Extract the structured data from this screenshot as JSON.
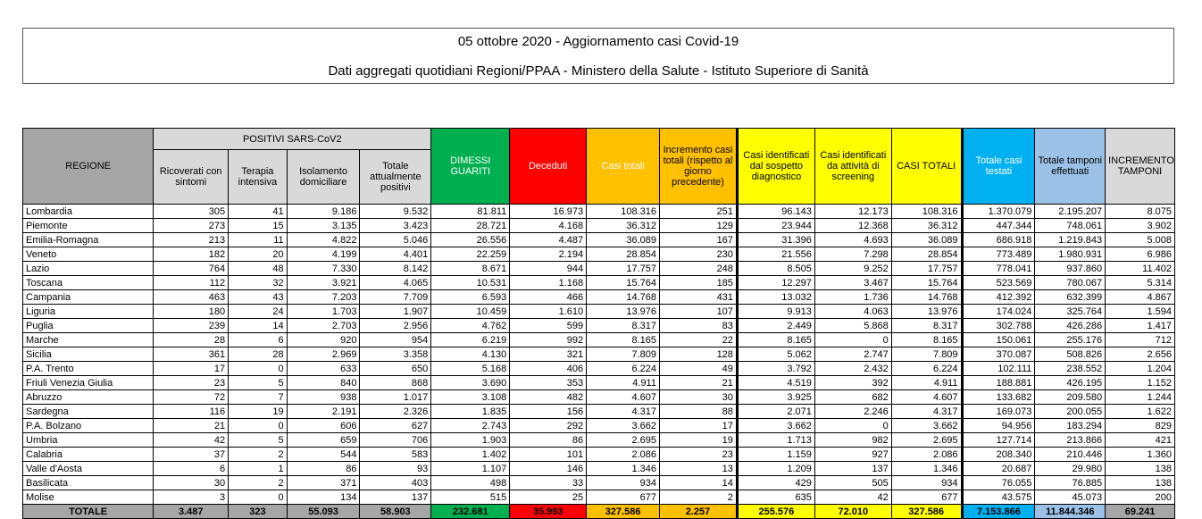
{
  "title": "05 ottobre 2020 - Aggiornamento casi Covid-19",
  "subtitle": "Dati aggregati quotidiani Regioni/PPAA - Ministero della Salute - Istituto Superiore di Sanità",
  "headers": {
    "regione": "REGIONE",
    "positivi_group": "POSITIVI SARS-CoV2",
    "ricoverati": "Ricoverati con sintomi",
    "terapia": "Terapia intensiva",
    "isolamento": "Isolamento domiciliare",
    "totale_positivi": "Totale attualmente positivi",
    "dimessi": "DIMESSI GUARITI",
    "deceduti": "Deceduti",
    "casi_totali": "Casi totali",
    "incremento_casi": "Incremento casi totali (rispetto al giorno precedente)",
    "sospetto": "Casi identificati dal sospetto diagnostico",
    "screening": "Casi identificati da attività di screening",
    "casi_totali_caps": "CASI TOTALI",
    "testati": "Totale casi testati",
    "tamponi": "Totale tamponi effettuati",
    "incremento_tamponi": "INCREMENTO TAMPONI"
  },
  "rows": [
    [
      "Lombardia",
      "305",
      "41",
      "9.186",
      "9.532",
      "81.811",
      "16.973",
      "108.316",
      "251",
      "96.143",
      "12.173",
      "108.316",
      "1.370.079",
      "2.195.207",
      "8.075"
    ],
    [
      "Piemonte",
      "273",
      "15",
      "3.135",
      "3.423",
      "28.721",
      "4.168",
      "36.312",
      "129",
      "23.944",
      "12.368",
      "36.312",
      "447.344",
      "748.061",
      "3.902"
    ],
    [
      "Emilia-Romagna",
      "213",
      "11",
      "4.822",
      "5.046",
      "26.556",
      "4.487",
      "36.089",
      "167",
      "31.396",
      "4.693",
      "36.089",
      "686.918",
      "1.219.843",
      "5.008"
    ],
    [
      "Veneto",
      "182",
      "20",
      "4.199",
      "4.401",
      "22.259",
      "2.194",
      "28.854",
      "230",
      "21.556",
      "7.298",
      "28.854",
      "773.489",
      "1.980.931",
      "6.986"
    ],
    [
      "Lazio",
      "764",
      "48",
      "7.330",
      "8.142",
      "8.671",
      "944",
      "17.757",
      "248",
      "8.505",
      "9.252",
      "17.757",
      "778.041",
      "937.860",
      "11.402"
    ],
    [
      "Toscana",
      "112",
      "32",
      "3.921",
      "4.065",
      "10.531",
      "1.168",
      "15.764",
      "185",
      "12.297",
      "3.467",
      "15.764",
      "523.569",
      "780.067",
      "5.314"
    ],
    [
      "Campania",
      "463",
      "43",
      "7.203",
      "7.709",
      "6.593",
      "466",
      "14.768",
      "431",
      "13.032",
      "1.736",
      "14.768",
      "412.392",
      "632.399",
      "4.867"
    ],
    [
      "Liguria",
      "180",
      "24",
      "1.703",
      "1.907",
      "10.459",
      "1.610",
      "13.976",
      "107",
      "9.913",
      "4.063",
      "13.976",
      "174.024",
      "325.764",
      "1.594"
    ],
    [
      "Puglia",
      "239",
      "14",
      "2.703",
      "2.956",
      "4.762",
      "599",
      "8.317",
      "83",
      "2.449",
      "5.868",
      "8.317",
      "302.788",
      "426.286",
      "1.417"
    ],
    [
      "Marche",
      "28",
      "6",
      "920",
      "954",
      "6.219",
      "992",
      "8.165",
      "22",
      "8.165",
      "0",
      "8.165",
      "150.061",
      "255.176",
      "712"
    ],
    [
      "Sicilia",
      "361",
      "28",
      "2.969",
      "3.358",
      "4.130",
      "321",
      "7.809",
      "128",
      "5.062",
      "2.747",
      "7.809",
      "370.087",
      "508.826",
      "2.656"
    ],
    [
      "P.A. Trento",
      "17",
      "0",
      "633",
      "650",
      "5.168",
      "406",
      "6.224",
      "49",
      "3.792",
      "2.432",
      "6.224",
      "102.111",
      "238.552",
      "1.204"
    ],
    [
      "Friuli Venezia Giulia",
      "23",
      "5",
      "840",
      "868",
      "3.690",
      "353",
      "4.911",
      "21",
      "4.519",
      "392",
      "4.911",
      "188.881",
      "426.195",
      "1.152"
    ],
    [
      "Abruzzo",
      "72",
      "7",
      "938",
      "1.017",
      "3.108",
      "482",
      "4.607",
      "30",
      "3.925",
      "682",
      "4.607",
      "133.682",
      "209.580",
      "1.244"
    ],
    [
      "Sardegna",
      "116",
      "19",
      "2.191",
      "2.326",
      "1.835",
      "156",
      "4.317",
      "88",
      "2.071",
      "2.246",
      "4.317",
      "169.073",
      "200.055",
      "1.622"
    ],
    [
      "P.A. Bolzano",
      "21",
      "0",
      "606",
      "627",
      "2.743",
      "292",
      "3.662",
      "17",
      "3.662",
      "0",
      "3.662",
      "94.956",
      "183.294",
      "829"
    ],
    [
      "Umbria",
      "42",
      "5",
      "659",
      "706",
      "1.903",
      "86",
      "2.695",
      "19",
      "1.713",
      "982",
      "2.695",
      "127.714",
      "213.866",
      "421"
    ],
    [
      "Calabria",
      "37",
      "2",
      "544",
      "583",
      "1.402",
      "101",
      "2.086",
      "23",
      "1.159",
      "927",
      "2.086",
      "208.340",
      "210.446",
      "1.360"
    ],
    [
      "Valle d'Aosta",
      "6",
      "1",
      "86",
      "93",
      "1.107",
      "146",
      "1.346",
      "13",
      "1.209",
      "137",
      "1.346",
      "20.687",
      "29.980",
      "138"
    ],
    [
      "Basilicata",
      "30",
      "2",
      "371",
      "403",
      "498",
      "33",
      "934",
      "14",
      "429",
      "505",
      "934",
      "76.055",
      "76.885",
      "138"
    ],
    [
      "Molise",
      "3",
      "0",
      "134",
      "137",
      "515",
      "25",
      "677",
      "2",
      "635",
      "42",
      "677",
      "43.575",
      "45.073",
      "200"
    ]
  ],
  "totale": [
    "TOTALE",
    "3.487",
    "323",
    "55.093",
    "58.903",
    "232.681",
    "35.993",
    "327.586",
    "2.257",
    "255.576",
    "72.010",
    "327.586",
    "7.153.866",
    "11.844.346",
    "69.241"
  ]
}
